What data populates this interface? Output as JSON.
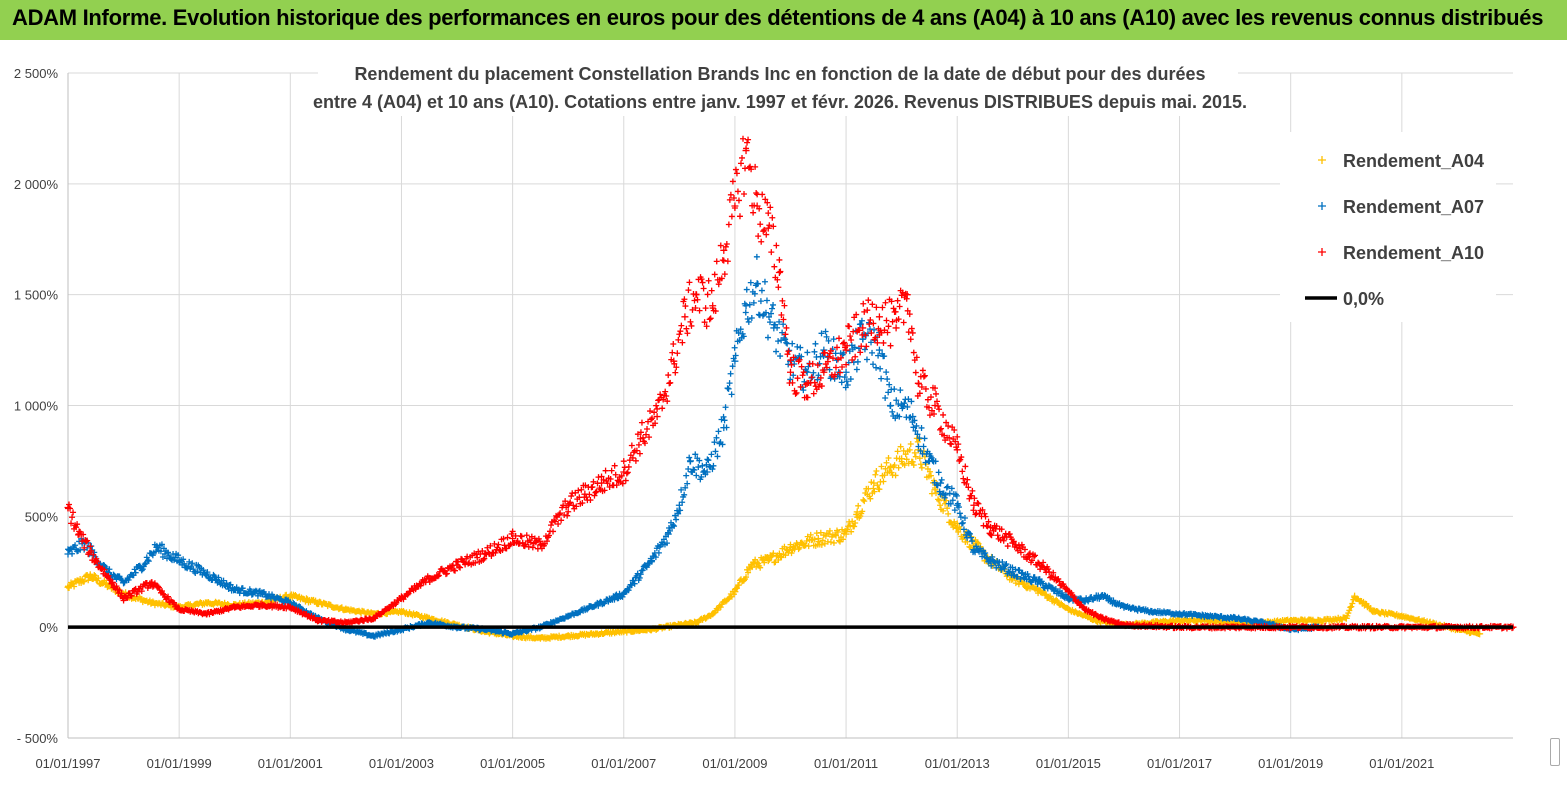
{
  "banner": {
    "title": "ADAM Informe. Evolution historique des performances en euros pour des détentions de 4 ans (A04) à 10 ans (A10) avec les revenus connus distribués",
    "background": "#92d050"
  },
  "chart_data": {
    "type": "scatter",
    "title_line1": "Rendement du placement Constellation Brands Inc en fonction de la date de début pour des durées",
    "title_line2": "entre 4 (A04) et 10 ans (A10).  Cotations entre janv. 1997 et févr. 2026. Revenus DISTRIBUES depuis mai. 2015.",
    "y_unit": "%",
    "ylim": [
      -500,
      2500
    ],
    "y_ticks": [
      -500,
      0,
      500,
      1000,
      1500,
      2000,
      2500
    ],
    "y_tick_labels": [
      "- 500%",
      "0%",
      "500%",
      "1 000%",
      "1 500%",
      "2 000%",
      "2 500%"
    ],
    "xlim": [
      1997.0,
      2023.0
    ],
    "x_ticks": [
      1997,
      1999,
      2001,
      2003,
      2005,
      2007,
      2009,
      2011,
      2013,
      2015,
      2017,
      2019,
      2021
    ],
    "x_tick_labels": [
      "01/01/1997",
      "01/01/1999",
      "01/01/2001",
      "01/01/2003",
      "01/01/2005",
      "01/01/2007",
      "01/01/2009",
      "01/01/2011",
      "01/01/2013",
      "01/01/2015",
      "01/01/2017",
      "01/01/2019",
      "01/01/2021"
    ],
    "grid": true,
    "legend_position": "top-right",
    "series": [
      {
        "name": "Rendement_A04",
        "color": "#ffc000",
        "marker": "+",
        "x": [
          1997.0,
          1997.4,
          1998.0,
          1998.5,
          1999.0,
          1999.5,
          2000.0,
          2000.5,
          2001.0,
          2001.5,
          2002.0,
          2002.5,
          2003.0,
          2003.5,
          2004.0,
          2004.5,
          2005.0,
          2005.5,
          2006.0,
          2006.5,
          2007.0,
          2007.5,
          2008.0,
          2008.3,
          2008.6,
          2009.0,
          2009.3,
          2009.6,
          2010.0,
          2010.5,
          2011.0,
          2011.2,
          2011.5,
          2011.8,
          2012.0,
          2012.3,
          2012.6,
          2013.0,
          2013.5,
          2014.0,
          2014.5,
          2015.0,
          2015.5,
          2016.0,
          2016.5,
          2017.0,
          2017.5,
          2018.0,
          2018.5,
          2019.0,
          2019.5,
          2020.0,
          2020.15,
          2020.5,
          2021.0,
          2021.5,
          2022.0,
          2022.4
        ],
        "y": [
          180,
          230,
          150,
          110,
          90,
          110,
          100,
          110,
          140,
          110,
          80,
          60,
          70,
          40,
          10,
          -20,
          -40,
          -50,
          -40,
          -30,
          -20,
          -10,
          10,
          20,
          60,
          160,
          280,
          300,
          360,
          400,
          420,
          520,
          650,
          720,
          760,
          800,
          620,
          450,
          320,
          220,
          160,
          80,
          30,
          10,
          20,
          30,
          30,
          20,
          20,
          30,
          30,
          40,
          140,
          70,
          50,
          20,
          -10,
          -30
        ]
      },
      {
        "name": "Rendement_A07",
        "color": "#0070c0",
        "marker": "+",
        "x": [
          1997.0,
          1997.3,
          1997.7,
          1998.0,
          1998.3,
          1998.6,
          1999.0,
          1999.5,
          2000.0,
          2000.5,
          2001.0,
          2001.5,
          2002.0,
          2002.5,
          2003.0,
          2003.5,
          2004.0,
          2004.5,
          2005.0,
          2005.5,
          2006.0,
          2006.5,
          2007.0,
          2007.5,
          2007.8,
          2008.0,
          2008.2,
          2008.5,
          2008.8,
          2009.0,
          2009.2,
          2009.4,
          2009.7,
          2010.0,
          2010.3,
          2010.6,
          2011.0,
          2011.3,
          2011.6,
          2011.8,
          2012.0,
          2012.2,
          2012.5,
          2012.7,
          2013.0,
          2013.3,
          2013.6,
          2014.0,
          2014.5,
          2015.0,
          2015.3,
          2015.6,
          2016.0,
          2016.5,
          2017.0,
          2017.5,
          2018.0,
          2018.5,
          2019.0,
          2019.5
        ],
        "y": [
          330,
          380,
          250,
          200,
          270,
          360,
          300,
          240,
          170,
          150,
          110,
          40,
          -10,
          -40,
          -10,
          20,
          0,
          -10,
          -30,
          0,
          50,
          100,
          150,
          300,
          420,
          550,
          750,
          700,
          900,
          1200,
          1450,
          1550,
          1350,
          1200,
          1150,
          1250,
          1150,
          1300,
          1250,
          1000,
          1000,
          950,
          750,
          650,
          550,
          350,
          300,
          250,
          200,
          130,
          120,
          140,
          90,
          70,
          60,
          50,
          40,
          20,
          -10,
          0
        ]
      },
      {
        "name": "Rendement_A10",
        "color": "#ff0000",
        "marker": "+",
        "x": [
          1997.0,
          1997.2,
          1997.5,
          1997.8,
          1998.0,
          1998.5,
          1999.0,
          1999.5,
          2000.0,
          2000.5,
          2001.0,
          2001.5,
          2002.0,
          2002.5,
          2003.0,
          2003.5,
          2004.0,
          2004.5,
          2005.0,
          2005.5,
          2006.0,
          2006.3,
          2006.6,
          2007.0,
          2007.3,
          2007.6,
          2007.9,
          2008.1,
          2008.3,
          2008.6,
          2008.8,
          2009.0,
          2009.2,
          2009.4,
          2009.6,
          2009.8,
          2010.0,
          2010.3,
          2010.6,
          2011.0,
          2011.3,
          2011.6,
          2011.9,
          2012.1,
          2012.3,
          2012.6,
          2013.0,
          2013.3,
          2013.6,
          2014.0,
          2014.3,
          2014.6,
          2015.0,
          2015.3,
          2015.6,
          2016.0,
          2017.0,
          2018.0,
          2019.0,
          2020.0,
          2021.0,
          2022.0,
          2023.0
        ],
        "y": [
          540,
          420,
          300,
          200,
          130,
          200,
          80,
          60,
          90,
          100,
          90,
          30,
          20,
          40,
          130,
          220,
          280,
          330,
          400,
          370,
          550,
          600,
          650,
          700,
          850,
          950,
          1200,
          1400,
          1500,
          1450,
          1700,
          1900,
          2150,
          1900,
          1800,
          1600,
          1150,
          1100,
          1150,
          1250,
          1350,
          1400,
          1350,
          1500,
          1100,
          1000,
          800,
          550,
          450,
          380,
          320,
          260,
          160,
          80,
          40,
          10,
          0,
          0,
          0,
          0,
          0,
          0,
          0
        ]
      },
      {
        "name": "0,0%",
        "color": "#000000",
        "marker": "line",
        "x": [
          1997.0,
          2023.0
        ],
        "y": [
          0,
          0
        ]
      }
    ]
  }
}
